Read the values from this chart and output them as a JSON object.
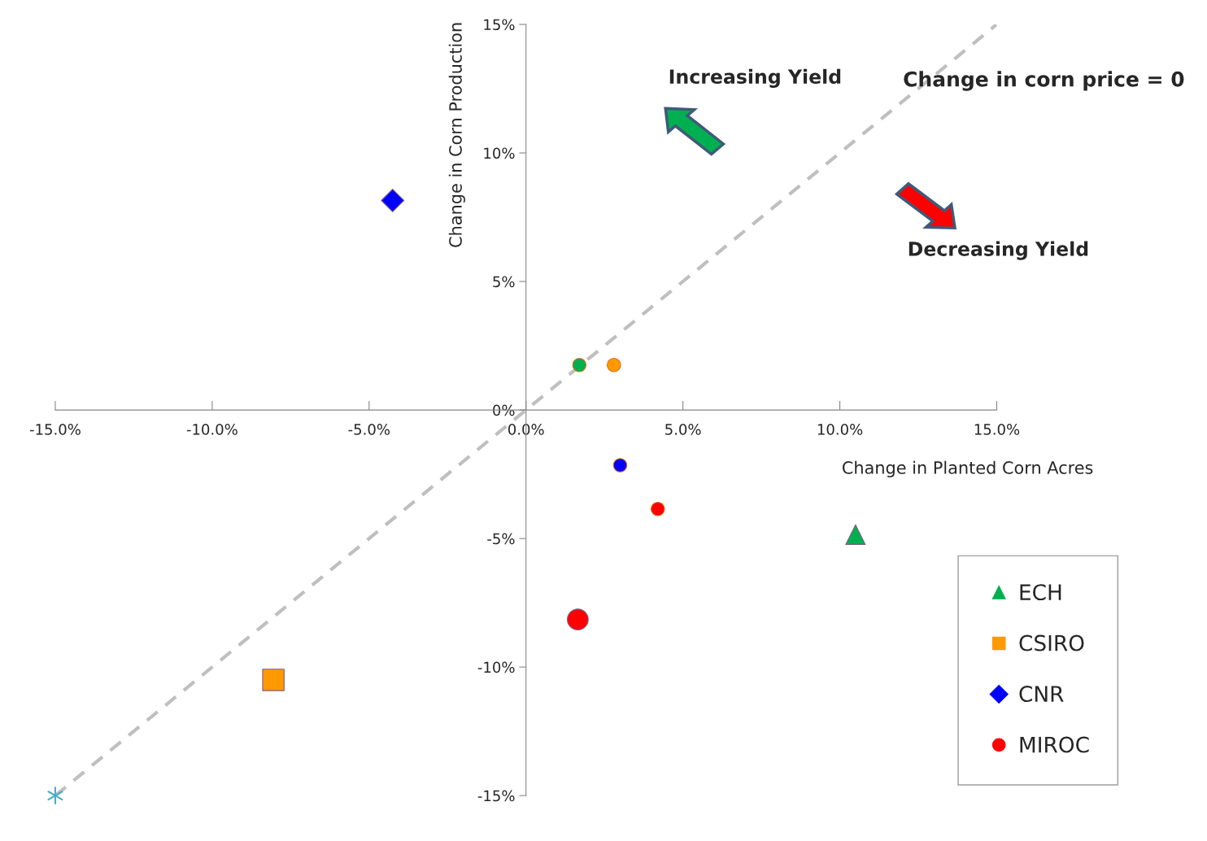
{
  "chart_data": {
    "type": "scatter",
    "xlabel": "Change in Planted Corn Acres",
    "ylabel": "Change in Corn Production",
    "xlim": [
      -15,
      15
    ],
    "ylim": [
      -15,
      15
    ],
    "xticks": [
      {
        "value": -15,
        "label": "-15.0%"
      },
      {
        "value": -10,
        "label": "-10.0%"
      },
      {
        "value": -5,
        "label": "-5.0%"
      },
      {
        "value": 0,
        "label": "0.0%"
      },
      {
        "value": 5,
        "label": "5.0%"
      },
      {
        "value": 10,
        "label": "10.0%"
      },
      {
        "value": 15,
        "label": "15.0%"
      }
    ],
    "yticks": [
      {
        "value": -15,
        "label": "-15%"
      },
      {
        "value": -10,
        "label": "-10%"
      },
      {
        "value": -5,
        "label": "-5%"
      },
      {
        "value": 0,
        "label": "0%"
      },
      {
        "value": 5,
        "label": "5%"
      },
      {
        "value": 10,
        "label": "10%"
      },
      {
        "value": 15,
        "label": "15%"
      }
    ],
    "grid": false,
    "legend": "bottom right",
    "series": [
      {
        "type": "line",
        "color": "#bfbfbf",
        "line_style": "dashed",
        "marker": "none",
        "x": [
          -15,
          15
        ],
        "values": [
          -15,
          15
        ]
      },
      {
        "color": "#4bacc6",
        "marker": "cross",
        "x": [
          -15
        ],
        "values": [
          -15
        ]
      },
      {
        "name": "ECH",
        "color": "#00b050",
        "marker": "triangle",
        "x": [
          10.5
        ],
        "values": [
          -4.85
        ]
      },
      {
        "name": "CSIRO",
        "color": "#ff9900",
        "marker": "square",
        "x": [
          -8.05
        ],
        "values": [
          -10.5
        ]
      },
      {
        "name": "CNR",
        "color": "#0000ff",
        "marker": "diamond",
        "x": [
          -4.25
        ],
        "values": [
          8.15
        ]
      },
      {
        "name": "MIROC",
        "color": "#ff0000",
        "marker": "circle",
        "x": [
          1.65
        ],
        "values": [
          -8.15
        ]
      },
      {
        "marker": "circle",
        "colors": [
          "#00b050",
          "#ff9900",
          "#0000ff",
          "#ff0000"
        ],
        "x": [
          1.7,
          2.8,
          3.0,
          4.2
        ],
        "values": [
          1.75,
          1.75,
          -2.15,
          -3.85
        ]
      }
    ],
    "annotations": [
      "Increasing Yield",
      "Decreasing Yield",
      {
        "text": "Change in corn price = 0",
        "x": 15,
        "y": 15
      }
    ]
  }
}
